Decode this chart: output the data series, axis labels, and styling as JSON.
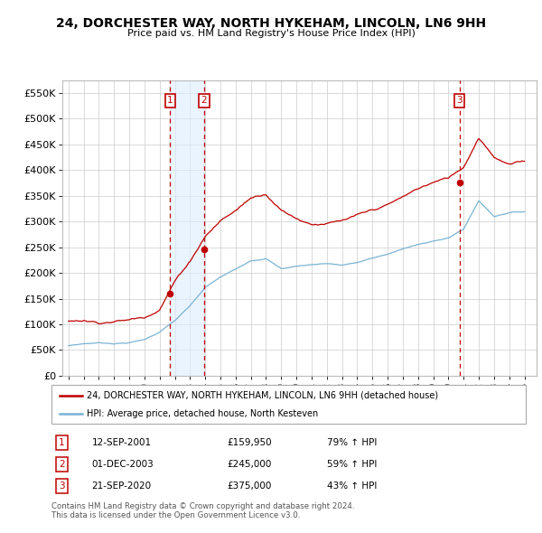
{
  "title": "24, DORCHESTER WAY, NORTH HYKEHAM, LINCOLN, LN6 9HH",
  "subtitle": "Price paid vs. HM Land Registry's House Price Index (HPI)",
  "legend_line1": "24, DORCHESTER WAY, NORTH HYKEHAM, LINCOLN, LN6 9HH (detached house)",
  "legend_line2": "HPI: Average price, detached house, North Kesteven",
  "footer1": "Contains HM Land Registry data © Crown copyright and database right 2024.",
  "footer2": "This data is licensed under the Open Government Licence v3.0.",
  "transactions": [
    {
      "num": 1,
      "date": "12-SEP-2001",
      "price": 159950,
      "change": "79% ↑ HPI",
      "year": 2001.7
    },
    {
      "num": 2,
      "date": "01-DEC-2003",
      "price": 245000,
      "change": "59% ↑ HPI",
      "year": 2003.92
    },
    {
      "num": 3,
      "date": "21-SEP-2020",
      "price": 375000,
      "change": "43% ↑ HPI",
      "year": 2020.72
    }
  ],
  "hpi_color": "#7ab3d4",
  "price_color": "#c00000",
  "shade_color": "#ddeeff",
  "ylim": [
    0,
    575000
  ],
  "yticks": [
    0,
    50000,
    100000,
    150000,
    200000,
    250000,
    300000,
    350000,
    400000,
    450000,
    500000,
    550000
  ],
  "ytick_labels": [
    "£0",
    "£50K",
    "£100K",
    "£150K",
    "£200K",
    "£250K",
    "£300K",
    "£350K",
    "£400K",
    "£450K",
    "£500K",
    "£550K"
  ],
  "xlim_start": 1994.6,
  "xlim_end": 2025.8,
  "xticks": [
    1995,
    1996,
    1997,
    1998,
    1999,
    2000,
    2001,
    2002,
    2003,
    2004,
    2005,
    2006,
    2007,
    2008,
    2009,
    2010,
    2011,
    2012,
    2013,
    2014,
    2015,
    2016,
    2017,
    2018,
    2019,
    2020,
    2021,
    2022,
    2023,
    2024,
    2025
  ]
}
